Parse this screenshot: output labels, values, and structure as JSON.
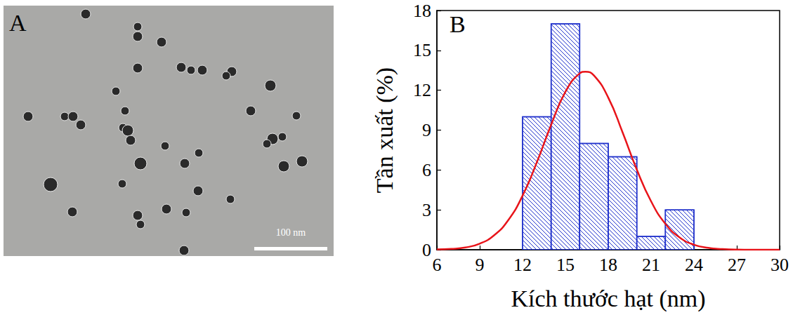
{
  "panel_a": {
    "label": "A",
    "scale_bar": "100 nm"
  },
  "chart_data": {
    "type": "histogram",
    "panel_label": "B",
    "bins": [
      12,
      14,
      16,
      18,
      20,
      22,
      24
    ],
    "counts": [
      10,
      17,
      8,
      7,
      1,
      3
    ],
    "color": "#2233cc",
    "fit": {
      "type": "line",
      "color": "#e8141a",
      "x": [
        6,
        7,
        8,
        9,
        10,
        11,
        12,
        13,
        14,
        15,
        16,
        16.4,
        17,
        18,
        19,
        20,
        21,
        22,
        23,
        24,
        25,
        26,
        27,
        28,
        29,
        30
      ],
      "values": [
        0.02,
        0.06,
        0.17,
        0.46,
        1.08,
        2.23,
        4.07,
        6.58,
        9.4,
        11.88,
        13.27,
        13.4,
        13.11,
        11.45,
        8.84,
        6.03,
        3.64,
        1.95,
        0.92,
        0.38,
        0.14,
        0.05,
        0.01,
        0,
        0,
        0
      ]
    },
    "xlabel": "Kích thước hạt (nm)",
    "ylabel": "Tần xuất (%)",
    "xlim": [
      6,
      30
    ],
    "xticks": [
      6,
      9,
      12,
      15,
      18,
      21,
      24,
      27,
      30
    ],
    "ylim": [
      0,
      18
    ],
    "yticks": [
      0,
      3,
      6,
      9,
      12,
      15,
      18
    ],
    "grid": false
  }
}
